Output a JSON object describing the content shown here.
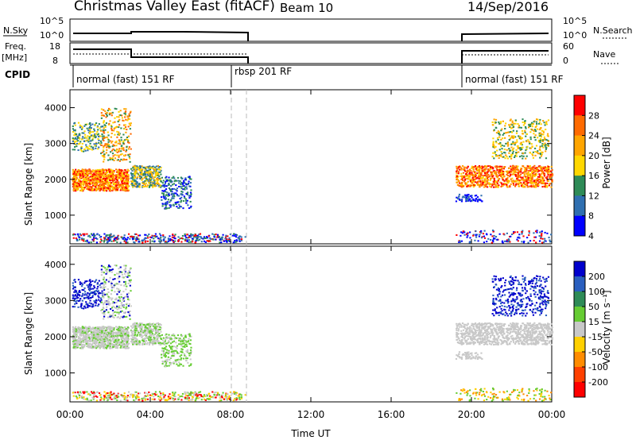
{
  "title": {
    "left": "Christmas Valley East (fitACF)",
    "beam": "Beam 10",
    "date": "14/Sep/2016"
  },
  "panels": {
    "nsky_label": "N.Sky",
    "nsky_ticks": [
      "10^5",
      "10^0"
    ],
    "nsearch_label": "N.Search",
    "nsearch_ticks": [
      "10^5",
      "10^0"
    ],
    "freq_label": "Freq.",
    "freq_unit": "[MHz]",
    "freq_ticks": [
      "18",
      "8"
    ],
    "nave_label": "Nave",
    "nave_ticks": [
      "60",
      "0"
    ],
    "cpid_label": "CPID",
    "cpid_segments": [
      "normal (fast) 151 RF",
      "rbsp 201 RF",
      "normal (fast) 151 RF"
    ]
  },
  "chart_data": [
    {
      "type": "heatmap",
      "name": "power",
      "ylabel": "Slant Range [km]",
      "yticks": [
        1000,
        2000,
        3000,
        4000
      ],
      "ylim": [
        200,
        4500
      ],
      "xlim_hours": [
        0,
        24
      ],
      "colorbar_label": "Power [dB]",
      "colorbar_ticks": [
        "28",
        "24",
        "20",
        "16",
        "12",
        "8",
        "4"
      ],
      "colorbar_colors": [
        "#ff0000",
        "#ff6a00",
        "#ffa500",
        "#ffd700",
        "#2e8b57",
        "#2f6fb0",
        "#0000ff"
      ]
    },
    {
      "type": "heatmap",
      "name": "velocity",
      "ylabel": "Slant Range [km]",
      "yticks": [
        1000,
        2000,
        3000,
        4000
      ],
      "ylim": [
        200,
        4500
      ],
      "xlim_hours": [
        0,
        24
      ],
      "xticks": [
        "00:00",
        "04:00",
        "08:00",
        "12:00",
        "16:00",
        "20:00",
        "00:00"
      ],
      "xlabel": "Time UT",
      "colorbar_label": "Velocity [m s⁻¹]",
      "colorbar_ticks": [
        "200",
        "100",
        "50",
        "15",
        "-15",
        "-50",
        "-100",
        "-200"
      ],
      "colorbar_colors": [
        "#0000cc",
        "#2a5fbf",
        "#2e8b57",
        "#66cc33",
        "#c8c8c8",
        "#ffd000",
        "#ff8c00",
        "#ff4000",
        "#ff0000"
      ]
    }
  ]
}
